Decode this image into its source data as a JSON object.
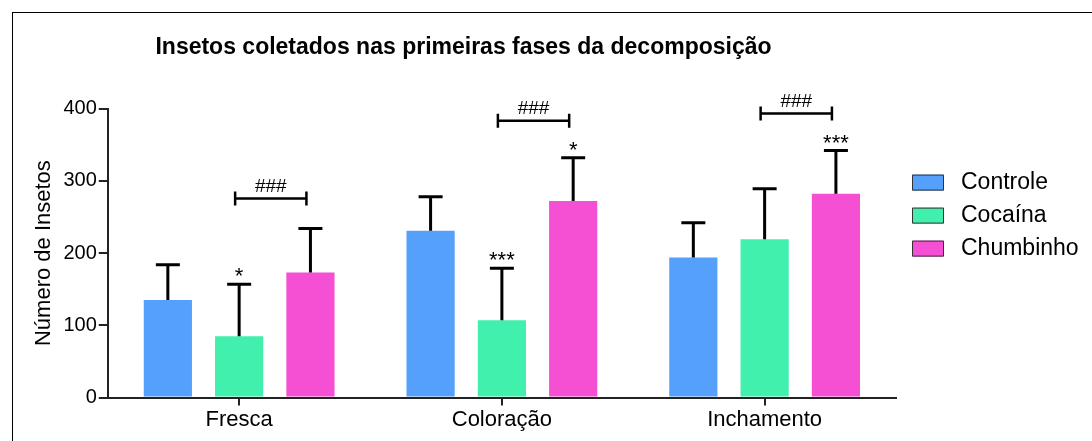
{
  "chart_data": {
    "type": "bar",
    "title": "Insetos coletados nas primeiras fases da decomposição",
    "ylabel": "Número de Insetos",
    "categories": [
      "Fresca",
      "Coloração",
      "Inchamento"
    ],
    "series": [
      {
        "name": "Controle",
        "color": "#55a0fa",
        "values": [
          135,
          231,
          194
        ],
        "errors": [
          [
            135,
            184
          ],
          [
            231,
            278
          ],
          [
            194,
            242
          ]
        ]
      },
      {
        "name": "Cocaína",
        "color": "#42f0ae",
        "values": [
          85,
          107,
          219
        ],
        "errors": [
          [
            85,
            157
          ],
          [
            107,
            179
          ],
          [
            219,
            289
          ]
        ]
      },
      {
        "name": "Chumbinho",
        "color": "#f550d4",
        "values": [
          173,
          272,
          282
        ],
        "errors": [
          [
            173,
            234
          ],
          [
            272,
            332
          ],
          [
            282,
            342
          ]
        ]
      }
    ],
    "ylim": [
      0,
      400
    ],
    "yticks": [
      0,
      100,
      200,
      300,
      400
    ],
    "legend": "right",
    "annotations": [
      "*",
      "###",
      "***",
      "*",
      "###",
      "***",
      "###"
    ]
  }
}
